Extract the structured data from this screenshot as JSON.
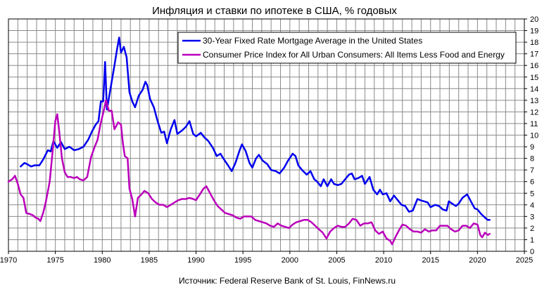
{
  "chart_data": {
    "type": "line",
    "title": "Инфляция и ставки по ипотеке в США, % годовых",
    "xlabel": "",
    "ylabel": "",
    "source": "Источник: Federal Reserve Bank of St. Louis, FinNews.ru",
    "xlim": [
      1970,
      2025
    ],
    "ylim": [
      0,
      20
    ],
    "x_ticks": [
      "1970",
      "1975",
      "1980",
      "1985",
      "1990",
      "1995",
      "2000",
      "2005",
      "2010",
      "2015",
      "2020",
      "2025"
    ],
    "y_ticks": [
      "0",
      "1",
      "2",
      "3",
      "4",
      "5",
      "6",
      "7",
      "8",
      "9",
      "10",
      "11",
      "12",
      "13",
      "14",
      "15",
      "16",
      "17",
      "18",
      "19",
      "20"
    ],
    "grid": true,
    "legend_position": "top-right",
    "series": [
      {
        "name": "30-Year Fixed Rate Mortgage Average in the United States",
        "color": "#0000ee",
        "points": [
          [
            1971.3,
            7.3
          ],
          [
            1971.7,
            7.6
          ],
          [
            1972.0,
            7.5
          ],
          [
            1972.4,
            7.3
          ],
          [
            1972.8,
            7.4
          ],
          [
            1973.3,
            7.4
          ],
          [
            1973.7,
            7.9
          ],
          [
            1974.2,
            8.7
          ],
          [
            1974.5,
            8.6
          ],
          [
            1974.8,
            9.5
          ],
          [
            1975.2,
            8.9
          ],
          [
            1975.6,
            9.4
          ],
          [
            1976.0,
            8.8
          ],
          [
            1976.5,
            9.0
          ],
          [
            1977.0,
            8.7
          ],
          [
            1977.5,
            8.8
          ],
          [
            1978.0,
            9.0
          ],
          [
            1978.5,
            9.6
          ],
          [
            1978.9,
            10.3
          ],
          [
            1979.3,
            10.9
          ],
          [
            1979.6,
            11.2
          ],
          [
            1979.85,
            12.9
          ],
          [
            1980.1,
            12.9
          ],
          [
            1980.3,
            16.3
          ],
          [
            1980.5,
            12.2
          ],
          [
            1980.8,
            13.6
          ],
          [
            1981.3,
            16.0
          ],
          [
            1981.6,
            17.5
          ],
          [
            1981.8,
            18.4
          ],
          [
            1982.0,
            17.1
          ],
          [
            1982.3,
            17.6
          ],
          [
            1982.6,
            16.7
          ],
          [
            1982.9,
            13.7
          ],
          [
            1983.2,
            12.9
          ],
          [
            1983.5,
            12.4
          ],
          [
            1983.9,
            13.4
          ],
          [
            1984.3,
            13.9
          ],
          [
            1984.6,
            14.6
          ],
          [
            1984.8,
            14.3
          ],
          [
            1985.1,
            13.1
          ],
          [
            1985.5,
            12.4
          ],
          [
            1985.9,
            11.2
          ],
          [
            1986.3,
            10.2
          ],
          [
            1986.6,
            10.3
          ],
          [
            1986.9,
            9.3
          ],
          [
            1987.3,
            10.5
          ],
          [
            1987.7,
            11.3
          ],
          [
            1988.0,
            10.1
          ],
          [
            1988.5,
            10.4
          ],
          [
            1988.9,
            10.7
          ],
          [
            1989.3,
            11.2
          ],
          [
            1989.7,
            10.1
          ],
          [
            1990.0,
            9.9
          ],
          [
            1990.5,
            10.2
          ],
          [
            1990.9,
            9.8
          ],
          [
            1991.3,
            9.5
          ],
          [
            1991.8,
            8.9
          ],
          [
            1992.2,
            8.2
          ],
          [
            1992.6,
            8.4
          ],
          [
            1992.9,
            8.0
          ],
          [
            1993.4,
            7.4
          ],
          [
            1993.8,
            6.9
          ],
          [
            1994.2,
            7.6
          ],
          [
            1994.6,
            8.6
          ],
          [
            1994.9,
            9.2
          ],
          [
            1995.3,
            8.6
          ],
          [
            1995.7,
            7.6
          ],
          [
            1996.0,
            7.2
          ],
          [
            1996.4,
            8.0
          ],
          [
            1996.7,
            8.3
          ],
          [
            1997.1,
            7.8
          ],
          [
            1997.6,
            7.5
          ],
          [
            1998.0,
            7.0
          ],
          [
            1998.5,
            6.9
          ],
          [
            1998.9,
            6.7
          ],
          [
            1999.4,
            7.2
          ],
          [
            1999.8,
            7.8
          ],
          [
            2000.3,
            8.4
          ],
          [
            2000.6,
            8.2
          ],
          [
            2000.9,
            7.4
          ],
          [
            2001.3,
            7.0
          ],
          [
            2001.8,
            6.6
          ],
          [
            2002.2,
            6.9
          ],
          [
            2002.6,
            6.2
          ],
          [
            2002.9,
            6.0
          ],
          [
            2003.3,
            5.6
          ],
          [
            2003.6,
            6.2
          ],
          [
            2004.0,
            5.6
          ],
          [
            2004.4,
            6.2
          ],
          [
            2004.7,
            5.8
          ],
          [
            2005.1,
            5.7
          ],
          [
            2005.5,
            5.8
          ],
          [
            2005.9,
            6.2
          ],
          [
            2006.3,
            6.6
          ],
          [
            2006.6,
            6.7
          ],
          [
            2006.9,
            6.2
          ],
          [
            2007.3,
            6.3
          ],
          [
            2007.7,
            6.5
          ],
          [
            2008.0,
            5.8
          ],
          [
            2008.5,
            6.4
          ],
          [
            2008.9,
            5.3
          ],
          [
            2009.3,
            4.9
          ],
          [
            2009.6,
            5.3
          ],
          [
            2009.9,
            4.9
          ],
          [
            2010.3,
            5.0
          ],
          [
            2010.7,
            4.3
          ],
          [
            2011.1,
            4.8
          ],
          [
            2011.6,
            4.3
          ],
          [
            2011.9,
            4.0
          ],
          [
            2012.3,
            3.9
          ],
          [
            2012.7,
            3.4
          ],
          [
            2013.1,
            3.5
          ],
          [
            2013.6,
            4.5
          ],
          [
            2013.9,
            4.4
          ],
          [
            2014.3,
            4.3
          ],
          [
            2014.7,
            4.2
          ],
          [
            2015.0,
            3.8
          ],
          [
            2015.5,
            4.0
          ],
          [
            2015.9,
            3.9
          ],
          [
            2016.3,
            3.6
          ],
          [
            2016.7,
            3.5
          ],
          [
            2016.95,
            4.3
          ],
          [
            2017.3,
            4.1
          ],
          [
            2017.7,
            3.9
          ],
          [
            2018.0,
            4.1
          ],
          [
            2018.4,
            4.6
          ],
          [
            2018.9,
            4.9
          ],
          [
            2019.3,
            4.3
          ],
          [
            2019.7,
            3.7
          ],
          [
            2020.0,
            3.6
          ],
          [
            2020.4,
            3.2
          ],
          [
            2020.8,
            2.9
          ],
          [
            2021.1,
            2.7
          ],
          [
            2021.3,
            2.7
          ]
        ]
      },
      {
        "name": "Consumer Price Index for All Urban Consumers: All Items Less Food and Energy",
        "color": "#bb00bb",
        "points": [
          [
            1970.0,
            6.0
          ],
          [
            1970.4,
            6.2
          ],
          [
            1970.7,
            6.5
          ],
          [
            1971.0,
            5.8
          ],
          [
            1971.3,
            4.9
          ],
          [
            1971.6,
            4.6
          ],
          [
            1971.9,
            3.3
          ],
          [
            1972.3,
            3.2
          ],
          [
            1972.6,
            3.1
          ],
          [
            1972.9,
            2.9
          ],
          [
            1973.2,
            2.8
          ],
          [
            1973.4,
            2.6
          ],
          [
            1973.7,
            3.3
          ],
          [
            1974.0,
            4.3
          ],
          [
            1974.4,
            6.0
          ],
          [
            1974.7,
            8.5
          ],
          [
            1975.0,
            11.2
          ],
          [
            1975.2,
            11.8
          ],
          [
            1975.4,
            10.4
          ],
          [
            1975.7,
            8.0
          ],
          [
            1976.0,
            6.8
          ],
          [
            1976.3,
            6.4
          ],
          [
            1976.6,
            6.4
          ],
          [
            1977.0,
            6.3
          ],
          [
            1977.3,
            6.4
          ],
          [
            1977.6,
            6.2
          ],
          [
            1978.0,
            6.1
          ],
          [
            1978.4,
            6.4
          ],
          [
            1978.8,
            8.1
          ],
          [
            1979.2,
            9.0
          ],
          [
            1979.5,
            9.6
          ],
          [
            1979.8,
            10.9
          ],
          [
            1980.1,
            11.9
          ],
          [
            1980.4,
            13.0
          ],
          [
            1980.7,
            12.1
          ],
          [
            1981.0,
            12.1
          ],
          [
            1981.3,
            10.5
          ],
          [
            1981.7,
            11.1
          ],
          [
            1982.0,
            10.9
          ],
          [
            1982.2,
            9.3
          ],
          [
            1982.4,
            8.2
          ],
          [
            1982.7,
            8.0
          ],
          [
            1982.9,
            5.4
          ],
          [
            1983.2,
            4.5
          ],
          [
            1983.5,
            3.0
          ],
          [
            1983.8,
            4.6
          ],
          [
            1984.2,
            4.9
          ],
          [
            1984.5,
            5.2
          ],
          [
            1984.9,
            5.0
          ],
          [
            1985.3,
            4.5
          ],
          [
            1985.7,
            4.2
          ],
          [
            1986.1,
            4.0
          ],
          [
            1986.5,
            4.0
          ],
          [
            1986.9,
            3.8
          ],
          [
            1987.3,
            4.0
          ],
          [
            1987.7,
            4.2
          ],
          [
            1988.1,
            4.4
          ],
          [
            1988.5,
            4.5
          ],
          [
            1988.9,
            4.5
          ],
          [
            1989.3,
            4.6
          ],
          [
            1989.7,
            4.5
          ],
          [
            1990.0,
            4.4
          ],
          [
            1990.4,
            4.9
          ],
          [
            1990.8,
            5.4
          ],
          [
            1991.1,
            5.6
          ],
          [
            1991.5,
            5.0
          ],
          [
            1991.9,
            4.4
          ],
          [
            1992.3,
            3.9
          ],
          [
            1992.7,
            3.6
          ],
          [
            1993.1,
            3.3
          ],
          [
            1993.5,
            3.2
          ],
          [
            1993.9,
            3.1
          ],
          [
            1994.3,
            2.9
          ],
          [
            1994.7,
            2.8
          ],
          [
            1995.1,
            3.0
          ],
          [
            1995.5,
            3.0
          ],
          [
            1995.9,
            3.0
          ],
          [
            1996.3,
            2.7
          ],
          [
            1996.7,
            2.6
          ],
          [
            1997.1,
            2.5
          ],
          [
            1997.5,
            2.4
          ],
          [
            1997.9,
            2.2
          ],
          [
            1998.3,
            2.1
          ],
          [
            1998.7,
            2.4
          ],
          [
            1999.1,
            2.2
          ],
          [
            1999.5,
            2.1
          ],
          [
            1999.9,
            2.0
          ],
          [
            2000.3,
            2.3
          ],
          [
            2000.7,
            2.5
          ],
          [
            2001.1,
            2.6
          ],
          [
            2001.5,
            2.7
          ],
          [
            2001.9,
            2.7
          ],
          [
            2002.3,
            2.5
          ],
          [
            2002.7,
            2.2
          ],
          [
            2003.1,
            1.9
          ],
          [
            2003.5,
            1.6
          ],
          [
            2003.9,
            1.1
          ],
          [
            2004.3,
            1.7
          ],
          [
            2004.7,
            2.0
          ],
          [
            2005.1,
            2.2
          ],
          [
            2005.5,
            2.1
          ],
          [
            2005.9,
            2.1
          ],
          [
            2006.3,
            2.4
          ],
          [
            2006.7,
            2.8
          ],
          [
            2007.1,
            2.7
          ],
          [
            2007.5,
            2.2
          ],
          [
            2007.9,
            2.4
          ],
          [
            2008.3,
            2.4
          ],
          [
            2008.7,
            2.5
          ],
          [
            2009.1,
            1.8
          ],
          [
            2009.5,
            1.5
          ],
          [
            2009.9,
            1.7
          ],
          [
            2010.3,
            1.1
          ],
          [
            2010.7,
            0.9
          ],
          [
            2010.9,
            0.6
          ],
          [
            2011.3,
            1.3
          ],
          [
            2011.7,
            1.9
          ],
          [
            2012.0,
            2.3
          ],
          [
            2012.4,
            2.2
          ],
          [
            2012.8,
            1.9
          ],
          [
            2013.2,
            1.7
          ],
          [
            2013.6,
            1.7
          ],
          [
            2014.0,
            1.6
          ],
          [
            2014.4,
            1.9
          ],
          [
            2014.8,
            1.7
          ],
          [
            2015.2,
            1.8
          ],
          [
            2015.6,
            1.8
          ],
          [
            2016.0,
            2.2
          ],
          [
            2016.4,
            2.2
          ],
          [
            2016.8,
            2.2
          ],
          [
            2017.2,
            1.9
          ],
          [
            2017.6,
            1.7
          ],
          [
            2018.0,
            1.8
          ],
          [
            2018.4,
            2.2
          ],
          [
            2018.8,
            2.2
          ],
          [
            2019.2,
            2.0
          ],
          [
            2019.6,
            2.4
          ],
          [
            2020.0,
            2.3
          ],
          [
            2020.3,
            1.4
          ],
          [
            2020.5,
            1.2
          ],
          [
            2020.8,
            1.6
          ],
          [
            2021.1,
            1.4
          ],
          [
            2021.3,
            1.5
          ]
        ]
      }
    ]
  }
}
